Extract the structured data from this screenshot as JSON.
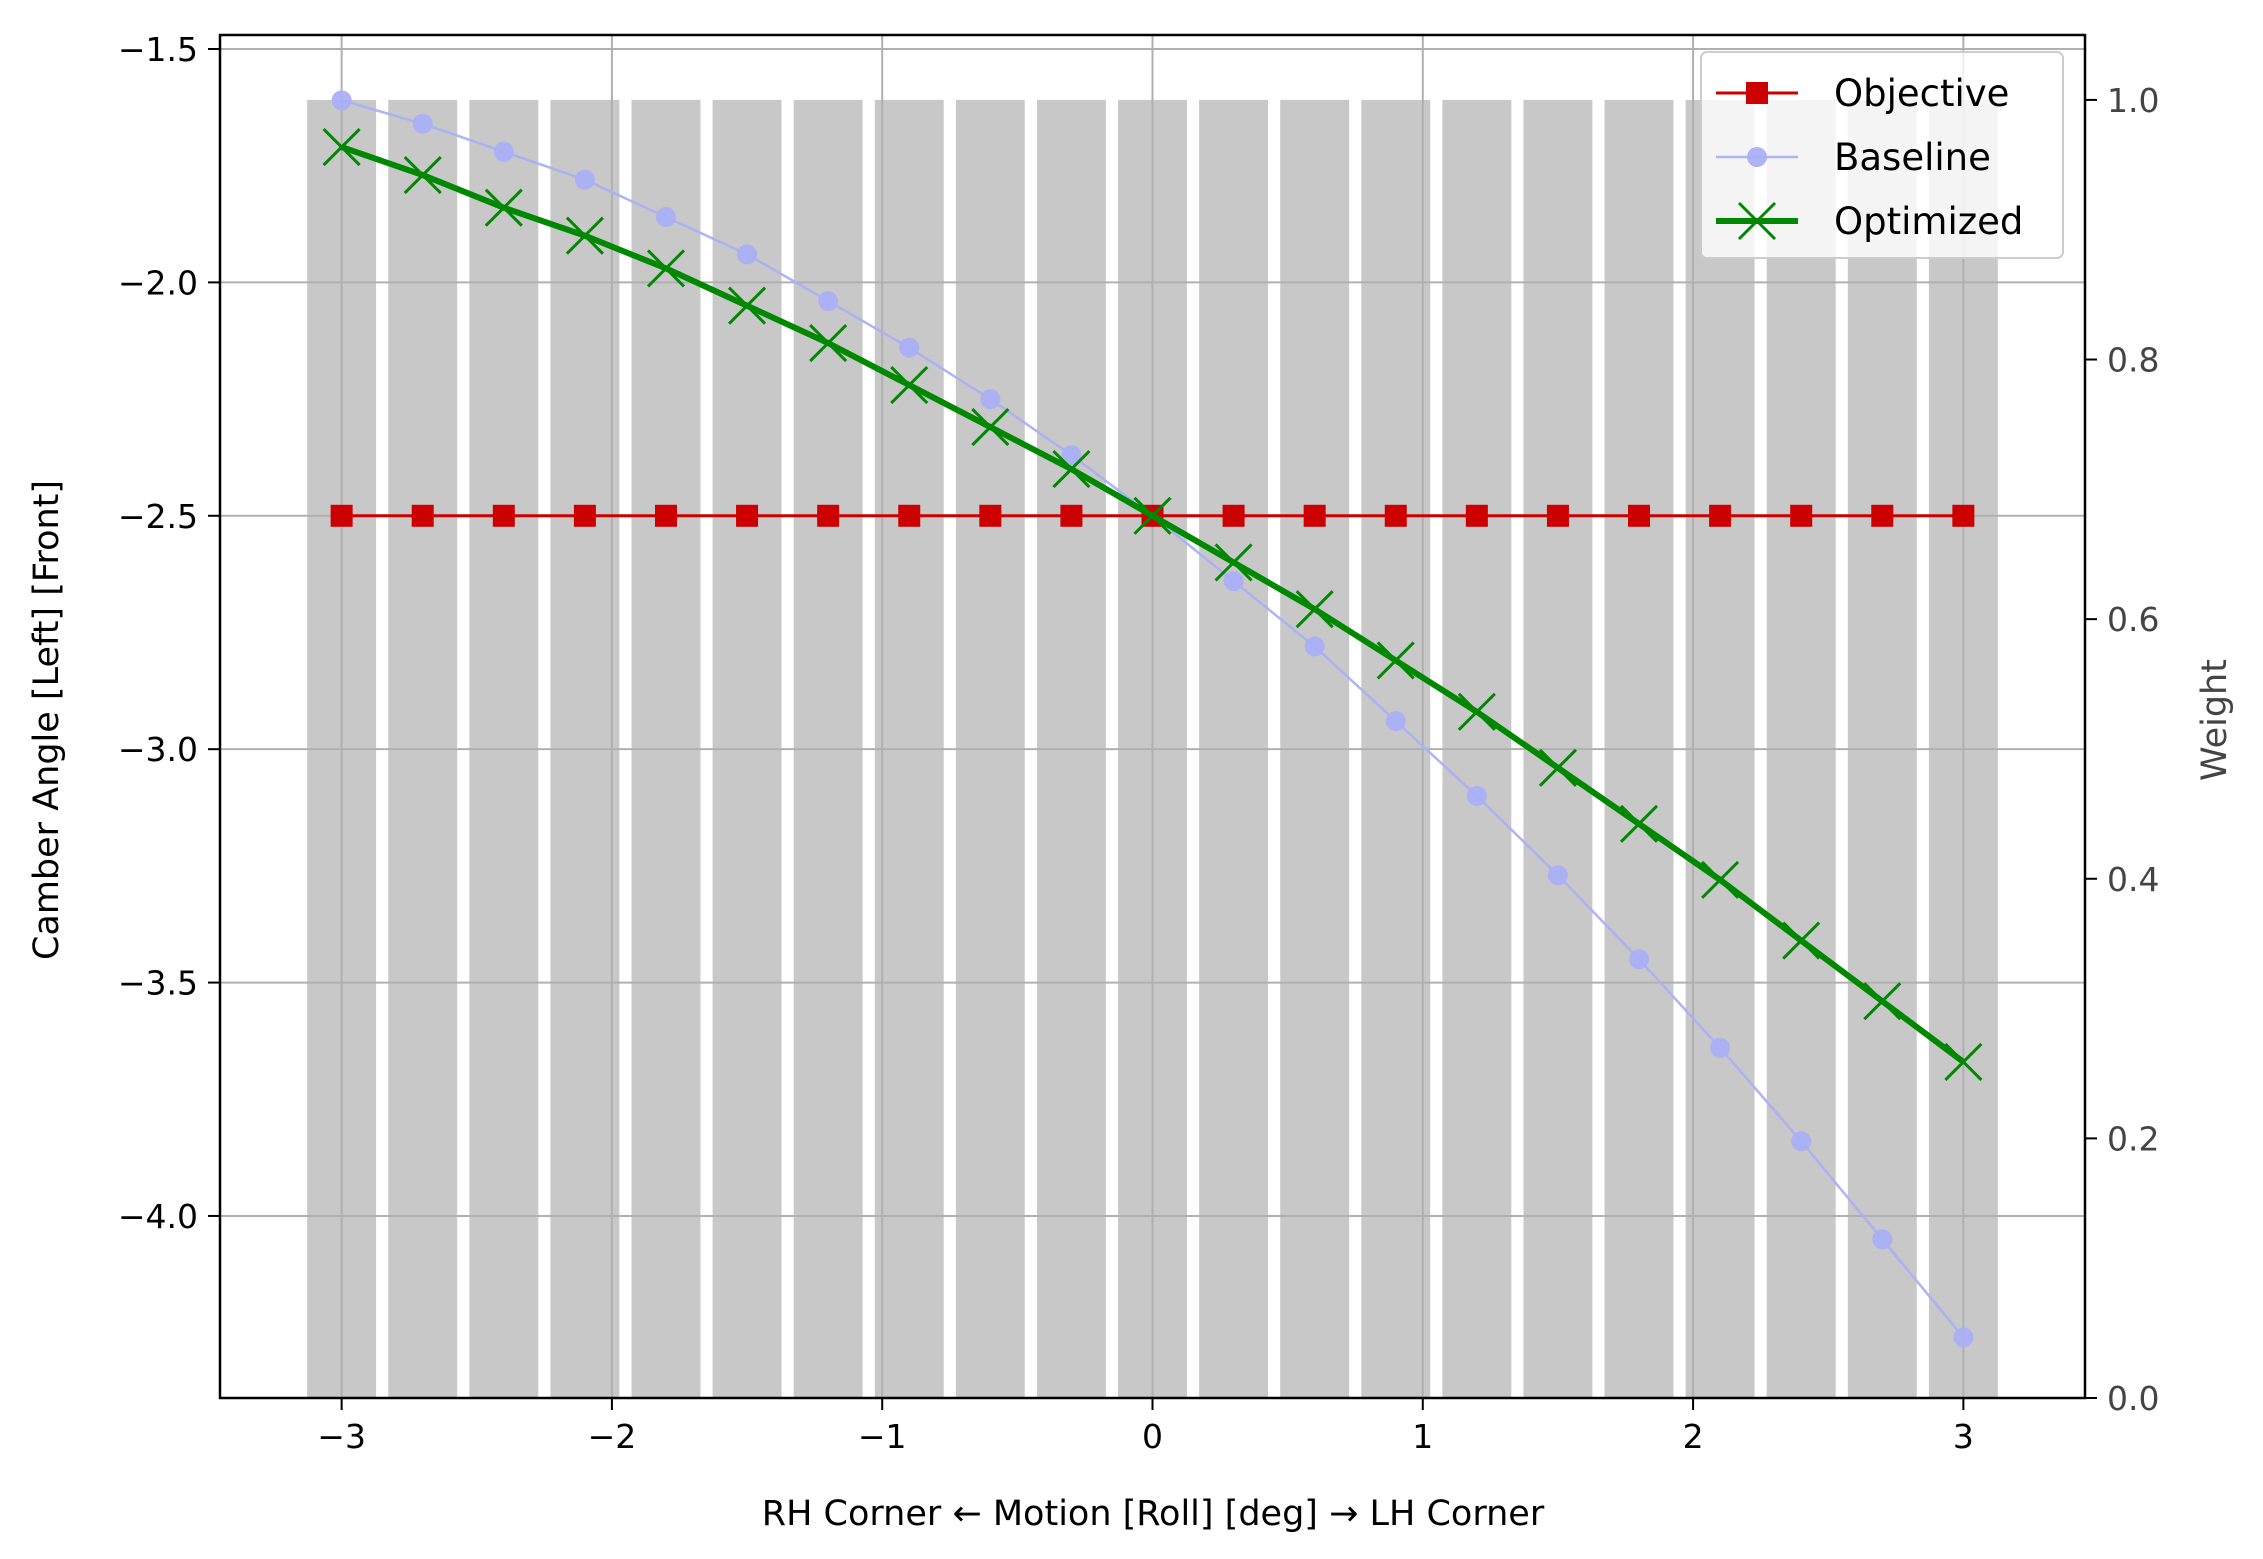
{
  "chart_data": {
    "type": "line",
    "xlabel": "RH Corner ← Motion [Roll] [deg] → LH Corner",
    "ylabel": "Camber Angle [Left] [Front]",
    "y2label": "Weight",
    "xlim": [
      -3.45,
      3.45
    ],
    "ylim": [
      -4.39,
      -1.47
    ],
    "y2lim": [
      0.0,
      1.05
    ],
    "xticks": [
      -3,
      -2,
      -1,
      0,
      1,
      2,
      3
    ],
    "xtick_labels": [
      "−3",
      "−2",
      "−1",
      "0",
      "1",
      "2",
      "3"
    ],
    "yticks": [
      -1.5,
      -2.0,
      -2.5,
      -3.0,
      -3.5,
      -4.0
    ],
    "ytick_labels": [
      "−1.5",
      "−2.0",
      "−2.5",
      "−3.0",
      "−3.5",
      "−4.0"
    ],
    "y2ticks": [
      0.0,
      0.2,
      0.4,
      0.6,
      0.8,
      1.0
    ],
    "y2tick_labels": [
      "0.0",
      "0.2",
      "0.4",
      "0.6",
      "0.8",
      "1.0"
    ],
    "grid": true,
    "legend_position": "top-right",
    "x": [
      -3.0,
      -2.7,
      -2.4,
      -2.1,
      -1.8,
      -1.5,
      -1.2,
      -0.9,
      -0.6,
      -0.3,
      0.0,
      0.3,
      0.6,
      0.9,
      1.2,
      1.5,
      1.8,
      2.1,
      2.4,
      2.7,
      3.0
    ],
    "weights": {
      "name": "Weight",
      "axis": "right",
      "color": "#c8c8c8",
      "values": [
        1,
        1,
        1,
        1,
        1,
        1,
        1,
        1,
        1,
        1,
        1,
        1,
        1,
        1,
        1,
        1,
        1,
        1,
        1,
        1,
        1
      ]
    },
    "series": [
      {
        "name": "Baseline",
        "color": "#aab0f5",
        "marker": "circle",
        "values": [
          -1.61,
          -1.66,
          -1.72,
          -1.78,
          -1.86,
          -1.94,
          -2.04,
          -2.14,
          -2.25,
          -2.37,
          -2.5,
          -2.64,
          -2.78,
          -2.94,
          -3.1,
          -3.27,
          -3.45,
          -3.64,
          -3.84,
          -4.05,
          -4.26
        ]
      },
      {
        "name": "Objective",
        "color": "#cc0000",
        "marker": "square",
        "values": [
          -2.5,
          -2.5,
          -2.5,
          -2.5,
          -2.5,
          -2.5,
          -2.5,
          -2.5,
          -2.5,
          -2.5,
          -2.5,
          -2.5,
          -2.5,
          -2.5,
          -2.5,
          -2.5,
          -2.5,
          -2.5,
          -2.5,
          -2.5,
          -2.5
        ]
      },
      {
        "name": "Optimized",
        "color": "#008800",
        "marker": "x",
        "values": [
          -1.71,
          -1.77,
          -1.84,
          -1.9,
          -1.97,
          -2.05,
          -2.13,
          -2.22,
          -2.31,
          -2.4,
          -2.5,
          -2.6,
          -2.7,
          -2.81,
          -2.92,
          -3.04,
          -3.16,
          -3.28,
          -3.41,
          -3.54,
          -3.67
        ]
      }
    ],
    "legend_order": [
      "Objective",
      "Baseline",
      "Optimized"
    ]
  }
}
